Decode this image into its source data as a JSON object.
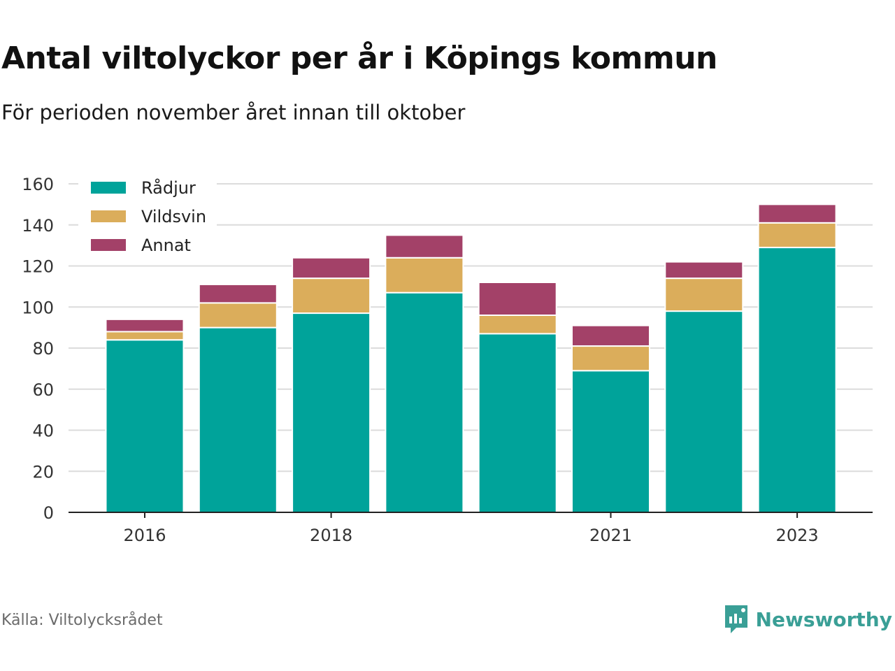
{
  "title": "Antal viltolyckor per år i Köpings kommun",
  "subtitle": "För perioden november året innan till oktober",
  "source": "Källa: Viltolycksrådet",
  "brand": {
    "name": "Newsworthy",
    "icon": "newsworthy-logo-icon",
    "color": "#3a9f96"
  },
  "chart_data": {
    "type": "bar",
    "stacked": true,
    "x": [
      2016,
      2017,
      2018,
      2019,
      2020,
      2021,
      2022,
      2023
    ],
    "x_tick_labels": [
      "2016",
      "2018",
      "2021",
      "2023"
    ],
    "x_tick_values": [
      2016,
      2018,
      2021,
      2023
    ],
    "ylim": [
      0,
      160
    ],
    "y_ticks": [
      0,
      20,
      40,
      60,
      80,
      100,
      120,
      140,
      160
    ],
    "grid": true,
    "legend_position": "top-left",
    "series": [
      {
        "name": "Rådjur",
        "color": "#00a39a",
        "values": [
          84,
          90,
          97,
          107,
          87,
          69,
          98,
          129
        ]
      },
      {
        "name": "Vildsvin",
        "color": "#dbad5b",
        "values": [
          4,
          12,
          17,
          17,
          9,
          12,
          16,
          12
        ]
      },
      {
        "name": "Annat",
        "color": "#a34168",
        "values": [
          6,
          9,
          10,
          11,
          16,
          10,
          8,
          9
        ]
      }
    ]
  }
}
